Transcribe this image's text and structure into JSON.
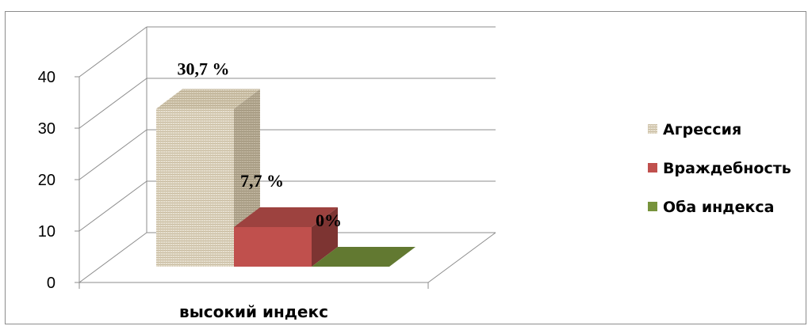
{
  "chart_data": {
    "type": "bar",
    "categories": [
      "высокий индекс"
    ],
    "series": [
      {
        "name": "Агрессия",
        "values": [
          30.7
        ],
        "label": "30,7 %",
        "color": "#e4dccb"
      },
      {
        "name": "Враждебность",
        "values": [
          7.7
        ],
        "label": "7,7 %",
        "color": "#c0504d"
      },
      {
        "name": "Оба индекса",
        "values": [
          0
        ],
        "label": "0%",
        "color": "#77933c"
      }
    ],
    "yticks": [
      "0",
      "10",
      "20",
      "30",
      "40"
    ],
    "ylim": [
      0,
      40
    ],
    "grid": true,
    "legend": "right",
    "three_d": true
  }
}
